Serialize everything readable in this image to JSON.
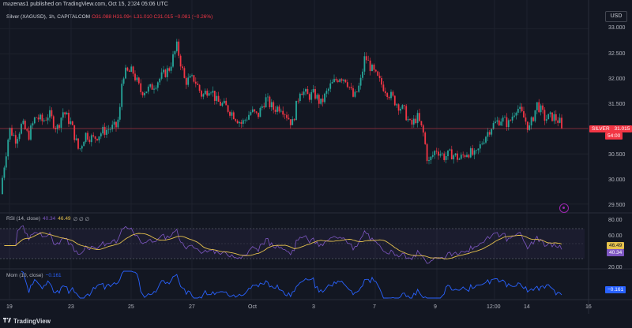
{
  "header": {
    "published_line": "mazenas1 published on TradingView.com, Oct 15, 2024 05:06 UTC",
    "symbol_name": "Silver (XAGUSD), 1h, CAPITALCOM",
    "ohlc": "O31.088 H31.094 L31.010 C31.015 −0.081 (−0.26%)"
  },
  "currency_button": "USD",
  "price_tags": {
    "symbol": "SILVER",
    "price": "31.015",
    "countdown": "54:00"
  },
  "rsi": {
    "label": "RSI (14, close)",
    "value_rsi": "40.34",
    "value_ma": "46.49",
    "extra": "∅ ∅ ∅",
    "tag_ma": "46.49",
    "tag_rsi": "40.34"
  },
  "mom": {
    "label": "Mom (10, close)",
    "value": "−0.161",
    "tag": "−0.161"
  },
  "footer": {
    "logo_text": "TradingView"
  },
  "colors": {
    "background": "#131722",
    "up": "#26a69a",
    "down": "#f23645",
    "rsi_line": "#7e57c2",
    "rsi_ma": "#e5c14d",
    "mom_line": "#2962ff",
    "current_price_line": "#f23645"
  },
  "chart_data": {
    "type": "candlestick",
    "timeframe": "1h",
    "x_ticks": [
      "19",
      "23",
      "25",
      "27",
      "Oct",
      "3",
      "7",
      "9",
      "12:00",
      "14",
      "16"
    ],
    "y_ticks": [
      "33.000",
      "32.500",
      "32.000",
      "31.500",
      "31.000",
      "30.500",
      "30.000",
      "29.500"
    ],
    "ylim": [
      29.45,
      33.1
    ],
    "price_trend": [
      [
        0,
        29.7
      ],
      [
        12,
        31.0
      ],
      [
        20,
        30.8
      ],
      [
        28,
        31.1
      ],
      [
        36,
        30.85
      ],
      [
        45,
        31.25
      ],
      [
        54,
        31.15
      ],
      [
        62,
        31.3
      ],
      [
        72,
        31.0
      ],
      [
        80,
        31.35
      ],
      [
        90,
        31.1
      ],
      [
        100,
        30.55
      ],
      [
        108,
        30.9
      ],
      [
        118,
        30.8
      ],
      [
        130,
        30.95
      ],
      [
        138,
        31.0
      ],
      [
        148,
        31.05
      ],
      [
        152,
        31.4
      ],
      [
        155,
        32.1
      ],
      [
        168,
        32.15
      ],
      [
        178,
        31.75
      ],
      [
        190,
        31.8
      ],
      [
        205,
        32.05
      ],
      [
        214,
        32.2
      ],
      [
        224,
        32.65
      ],
      [
        234,
        31.95
      ],
      [
        246,
        32.0
      ],
      [
        256,
        31.65
      ],
      [
        266,
        31.85
      ],
      [
        274,
        31.55
      ],
      [
        285,
        31.45
      ],
      [
        295,
        31.3
      ],
      [
        306,
        31.1
      ],
      [
        318,
        31.35
      ],
      [
        326,
        31.25
      ],
      [
        336,
        31.6
      ],
      [
        346,
        31.4
      ],
      [
        356,
        31.45
      ],
      [
        370,
        31.1
      ],
      [
        380,
        31.8
      ],
      [
        390,
        31.65
      ],
      [
        398,
        31.7
      ],
      [
        406,
        31.5
      ],
      [
        418,
        31.85
      ],
      [
        430,
        32.05
      ],
      [
        438,
        32.0
      ],
      [
        448,
        31.6
      ],
      [
        456,
        31.9
      ],
      [
        462,
        32.45
      ],
      [
        470,
        32.2
      ],
      [
        480,
        31.95
      ],
      [
        490,
        31.75
      ],
      [
        500,
        31.55
      ],
      [
        512,
        31.35
      ],
      [
        520,
        31.05
      ],
      [
        528,
        31.25
      ],
      [
        536,
        30.9
      ],
      [
        542,
        30.3
      ],
      [
        552,
        30.6
      ],
      [
        562,
        30.45
      ],
      [
        572,
        30.5
      ],
      [
        582,
        30.4
      ],
      [
        592,
        30.55
      ],
      [
        602,
        30.45
      ],
      [
        612,
        30.8
      ],
      [
        622,
        31.05
      ],
      [
        634,
        31.2
      ],
      [
        644,
        31.1
      ],
      [
        654,
        31.45
      ],
      [
        664,
        31.2
      ],
      [
        670,
        31.0
      ],
      [
        680,
        31.5
      ],
      [
        690,
        31.2
      ],
      [
        700,
        31.25
      ],
      [
        708,
        31.15
      ],
      [
        712,
        31.015
      ]
    ]
  }
}
